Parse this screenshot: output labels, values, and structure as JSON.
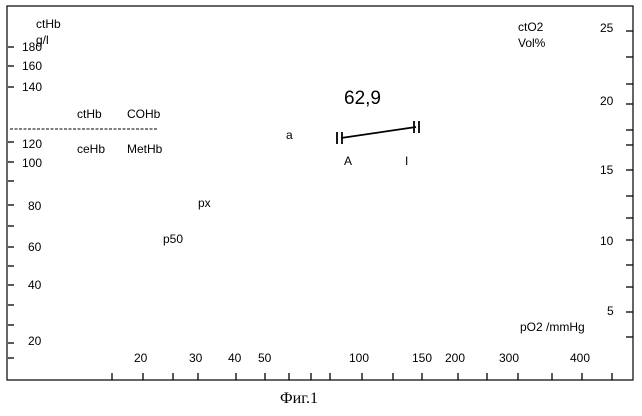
{
  "left_axis": {
    "title_line1": "ctHb",
    "title_line2": "g/l",
    "ticks": [
      "180",
      "160",
      "140",
      "120",
      "100",
      "80",
      "60",
      "40",
      "20"
    ]
  },
  "right_axis": {
    "title_line1": "ctO2",
    "title_line2": "Vol%",
    "ticks": [
      "25",
      "20",
      "15",
      "10",
      "5"
    ]
  },
  "bottom_axis": {
    "title": "pO2 /mmHg",
    "ticks": [
      "20",
      "30",
      "40",
      "50",
      "100",
      "150",
      "200",
      "300",
      "400"
    ]
  },
  "table_labels": {
    "top_left": "ctHb",
    "top_right": "COHb",
    "bottom_left": "ceHb",
    "bottom_right": "MetHb"
  },
  "markers": {
    "a": "a",
    "px": "px",
    "p50": "p50"
  },
  "shunt": {
    "value_text": "62,9",
    "label_A": "A",
    "label_I": "I"
  },
  "caption": "Фиг.1"
}
